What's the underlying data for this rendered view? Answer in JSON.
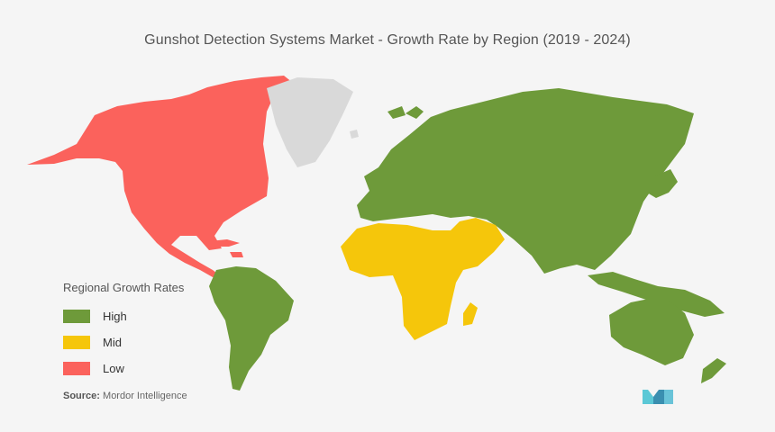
{
  "title": "Gunshot Detection Systems Market - Growth Rate by Region (2019 - 2024)",
  "legend": {
    "title": "Regional Growth Rates",
    "items": [
      {
        "label": "High",
        "color": "#6e9a3a"
      },
      {
        "label": "Mid",
        "color": "#f5c60b"
      },
      {
        "label": "Low",
        "color": "#fb625c"
      }
    ]
  },
  "regions": [
    {
      "name": "North America",
      "rate": "Low"
    },
    {
      "name": "South America",
      "rate": "High"
    },
    {
      "name": "Europe",
      "rate": "High"
    },
    {
      "name": "Asia-Pacific",
      "rate": "High"
    },
    {
      "name": "Middle East & Africa",
      "rate": "Mid"
    }
  ],
  "no_data_color": "#d9d9d9",
  "source": {
    "label": "Source:",
    "text": "Mordor Intelligence"
  },
  "logo_icon": "mordor-intelligence-logo-icon"
}
